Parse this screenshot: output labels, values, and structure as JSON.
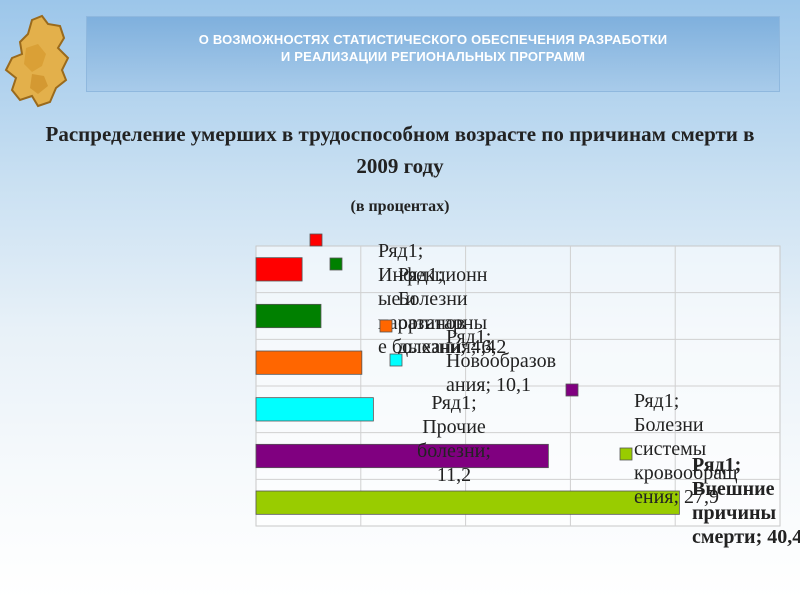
{
  "header": {
    "line1": "О ВОЗМОЖНОСТЯХ СТАТИСТИЧЕСКОГО ОБЕСПЕЧЕНИЯ РАЗРАБОТКИ",
    "line2": "И РЕАЛИЗАЦИИ РЕГИОНАЛЬНЫХ ПРОГРАММ"
  },
  "logo": {
    "icon": "region-map-icon"
  },
  "colors": {
    "header_band": "#8dbbe3",
    "infectious": "#ff0000",
    "respiratory": "#008000",
    "neoplasms": "#ff6600",
    "other": "#00ffff",
    "circulatory": "#800080",
    "external": "#99cc00"
  },
  "chart_data": {
    "type": "bar",
    "orientation": "horizontal",
    "title": "Распределение умерших в трудоспособном возрасте по причинам смерти в 2009 году",
    "subtitle": "(в процентах)",
    "xlim": [
      0,
      50
    ],
    "grid": true,
    "series": [
      {
        "name": "Ряд1",
        "categories": [
          "Инфекционные и паразитарные болезни",
          "Болезни органов дыхания",
          "Новообразования",
          "Прочие болезни",
          "Болезни системы кровообращения",
          "Внешние причины смерти"
        ],
        "values": [
          4.4,
          6.2,
          10.1,
          11.2,
          27.9,
          40.4
        ],
        "data_labels": [
          [
            "Ряд1;",
            "Инфекционн",
            "ые и",
            "паразитарны",
            "е болезни; 4,4"
          ],
          [
            "Ряд1;",
            "Болезни",
            "органов",
            "дыхания; 6,2"
          ],
          [
            "Ряд1;",
            "Новообразов",
            "ания; 10,1"
          ],
          [
            "Ряд1;",
            "Прочие",
            "болезни;",
            "11,2"
          ],
          [
            "Ряд1;",
            "Болезни",
            "системы",
            "кровообращ",
            "ения; 27,9"
          ],
          [
            "Ряд1;",
            "Внешние",
            "причины",
            "смерти; 40,4"
          ]
        ]
      }
    ]
  }
}
